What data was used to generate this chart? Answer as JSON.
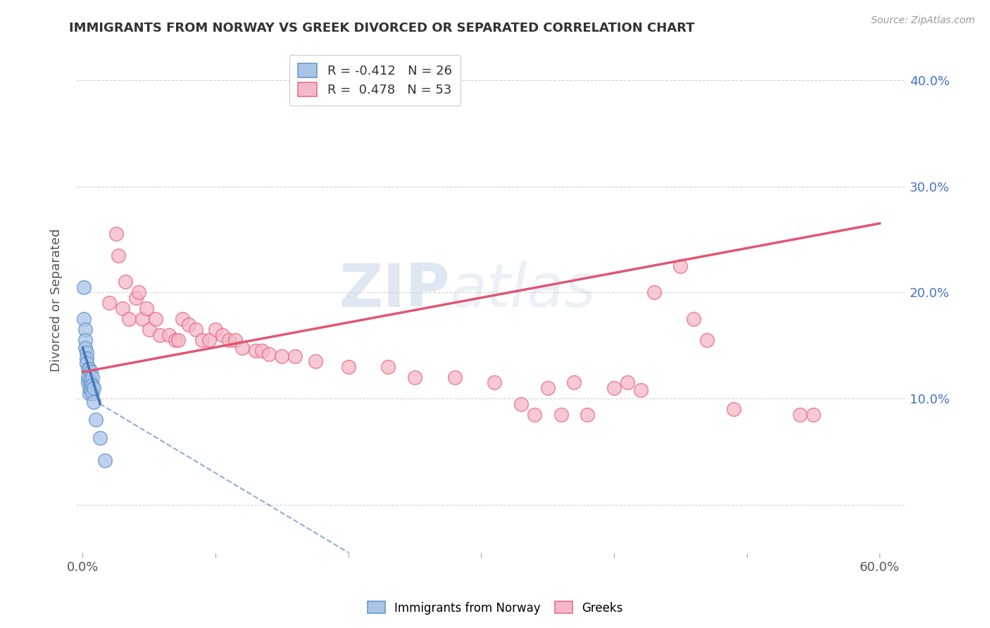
{
  "title": "IMMIGRANTS FROM NORWAY VS GREEK DIVORCED OR SEPARATED CORRELATION CHART",
  "source": "Source: ZipAtlas.com",
  "ylabel": "Divorced or Separated",
  "legend_blue_label": "Immigrants from Norway",
  "legend_pink_label": "Greeks",
  "legend_blue_R": "R = -0.412",
  "legend_blue_N": "N = 26",
  "legend_pink_R": "R =  0.478",
  "legend_pink_N": "N = 53",
  "watermark_zip": "ZIP",
  "watermark_atlas": "atlas",
  "xlim": [
    -0.005,
    0.62
  ],
  "ylim": [
    -0.045,
    0.43
  ],
  "yticks": [
    0.0,
    0.1,
    0.2,
    0.3,
    0.4
  ],
  "ytick_labels": [
    "",
    "10.0%",
    "20.0%",
    "30.0%",
    "40.0%"
  ],
  "blue_color": "#aac4e8",
  "pink_color": "#f5b8c8",
  "blue_edge_color": "#6699cc",
  "pink_edge_color": "#e8708a",
  "blue_line_color": "#4477bb",
  "pink_line_color": "#e05575",
  "blue_dots": [
    [
      0.001,
      0.205
    ],
    [
      0.001,
      0.175
    ],
    [
      0.002,
      0.165
    ],
    [
      0.002,
      0.155
    ],
    [
      0.002,
      0.148
    ],
    [
      0.003,
      0.143
    ],
    [
      0.003,
      0.138
    ],
    [
      0.003,
      0.133
    ],
    [
      0.004,
      0.128
    ],
    [
      0.004,
      0.12
    ],
    [
      0.004,
      0.115
    ],
    [
      0.005,
      0.128
    ],
    [
      0.005,
      0.118
    ],
    [
      0.005,
      0.11
    ],
    [
      0.005,
      0.105
    ],
    [
      0.006,
      0.125
    ],
    [
      0.006,
      0.115
    ],
    [
      0.006,
      0.108
    ],
    [
      0.007,
      0.12
    ],
    [
      0.007,
      0.113
    ],
    [
      0.007,
      0.105
    ],
    [
      0.008,
      0.11
    ],
    [
      0.008,
      0.097
    ],
    [
      0.01,
      0.08
    ],
    [
      0.013,
      0.063
    ],
    [
      0.017,
      0.042
    ]
  ],
  "pink_dots": [
    [
      0.02,
      0.19
    ],
    [
      0.025,
      0.255
    ],
    [
      0.027,
      0.235
    ],
    [
      0.03,
      0.185
    ],
    [
      0.032,
      0.21
    ],
    [
      0.035,
      0.175
    ],
    [
      0.04,
      0.195
    ],
    [
      0.042,
      0.2
    ],
    [
      0.045,
      0.175
    ],
    [
      0.048,
      0.185
    ],
    [
      0.05,
      0.165
    ],
    [
      0.055,
      0.175
    ],
    [
      0.058,
      0.16
    ],
    [
      0.065,
      0.16
    ],
    [
      0.07,
      0.155
    ],
    [
      0.072,
      0.155
    ],
    [
      0.075,
      0.175
    ],
    [
      0.08,
      0.17
    ],
    [
      0.085,
      0.165
    ],
    [
      0.09,
      0.155
    ],
    [
      0.095,
      0.155
    ],
    [
      0.1,
      0.165
    ],
    [
      0.105,
      0.16
    ],
    [
      0.11,
      0.155
    ],
    [
      0.115,
      0.155
    ],
    [
      0.12,
      0.148
    ],
    [
      0.13,
      0.145
    ],
    [
      0.135,
      0.145
    ],
    [
      0.14,
      0.142
    ],
    [
      0.15,
      0.14
    ],
    [
      0.16,
      0.14
    ],
    [
      0.175,
      0.135
    ],
    [
      0.2,
      0.13
    ],
    [
      0.23,
      0.13
    ],
    [
      0.25,
      0.12
    ],
    [
      0.28,
      0.12
    ],
    [
      0.31,
      0.115
    ],
    [
      0.35,
      0.11
    ],
    [
      0.37,
      0.115
    ],
    [
      0.4,
      0.11
    ],
    [
      0.41,
      0.115
    ],
    [
      0.42,
      0.108
    ],
    [
      0.43,
      0.2
    ],
    [
      0.45,
      0.225
    ],
    [
      0.46,
      0.175
    ],
    [
      0.47,
      0.155
    ],
    [
      0.49,
      0.09
    ],
    [
      0.33,
      0.095
    ],
    [
      0.34,
      0.085
    ],
    [
      0.36,
      0.085
    ],
    [
      0.38,
      0.085
    ],
    [
      0.54,
      0.085
    ],
    [
      0.55,
      0.085
    ]
  ],
  "blue_line_solid": [
    [
      0.0,
      0.148
    ],
    [
      0.013,
      0.095
    ]
  ],
  "blue_line_dashed": [
    [
      0.013,
      0.095
    ],
    [
      0.3,
      -0.12
    ]
  ],
  "pink_line": [
    [
      0.0,
      0.125
    ],
    [
      0.6,
      0.265
    ]
  ],
  "background_color": "#ffffff",
  "grid_color": "#d0d0d0"
}
